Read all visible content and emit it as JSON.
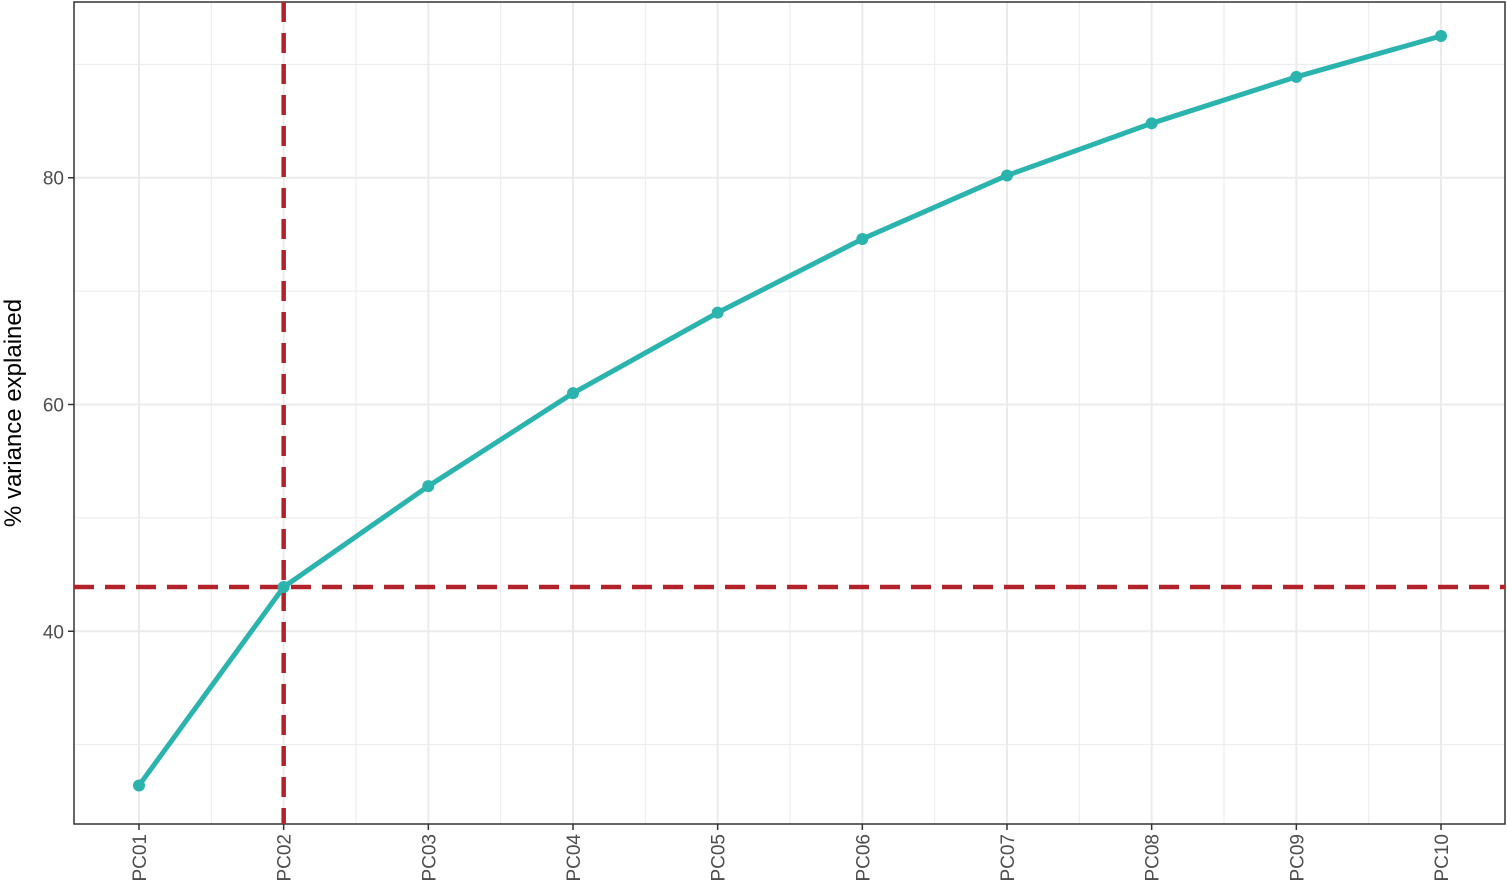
{
  "chart_data": {
    "type": "line",
    "title": "",
    "xlabel": "",
    "ylabel": "% variance explained",
    "categories": [
      "PC01",
      "PC02",
      "PC03",
      "PC04",
      "PC05",
      "PC06",
      "PC07",
      "PC08",
      "PC09",
      "PC10"
    ],
    "series": [
      {
        "values": [
          26.4,
          43.9,
          52.8,
          61.0,
          68.1,
          74.6,
          80.2,
          84.8,
          88.9,
          92.5
        ]
      }
    ],
    "ylim": [
      23,
      95.5
    ],
    "yticks": [
      40,
      60,
      80
    ],
    "grid": true,
    "reference_lines": {
      "x": "PC02",
      "y": 43.9
    },
    "colors": {
      "line": "#2BB3AD",
      "reference": "#B2222A",
      "grid": "#EBEBEB",
      "panel_border": "#333333"
    }
  }
}
